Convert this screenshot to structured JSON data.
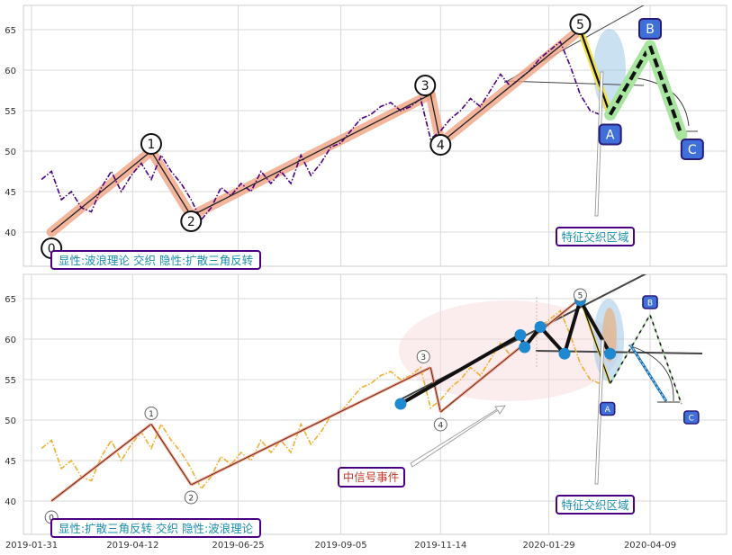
{
  "chart_data": [
    {
      "type": "line",
      "panel": "top",
      "ylim": [
        35.5,
        68
      ],
      "y_ticks": [
        "40",
        "45",
        "50",
        "55",
        "60",
        "65"
      ],
      "series": [
        {
          "role": "price",
          "color": "#4b0082",
          "style": "dash-dot",
          "x": [
            "2019-02-07",
            "2019-02-14",
            "2019-02-21",
            "2019-02-28",
            "2019-03-07",
            "2019-03-14",
            "2019-03-21",
            "2019-03-28",
            "2019-04-04",
            "2019-04-11",
            "2019-04-18",
            "2019-04-25",
            "2019-05-02",
            "2019-05-09",
            "2019-05-16",
            "2019-05-23",
            "2019-05-30",
            "2019-06-06",
            "2019-06-13",
            "2019-06-20",
            "2019-06-27",
            "2019-07-04",
            "2019-07-11",
            "2019-07-18",
            "2019-07-25",
            "2019-08-01",
            "2019-08-08",
            "2019-08-15",
            "2019-08-22",
            "2019-08-29",
            "2019-09-05",
            "2019-09-12",
            "2019-09-19",
            "2019-09-26",
            "2019-10-03",
            "2019-10-10",
            "2019-10-17",
            "2019-10-24",
            "2019-10-31",
            "2019-11-07",
            "2019-11-14",
            "2019-11-21",
            "2019-11-28",
            "2019-12-05",
            "2019-12-12",
            "2019-12-19",
            "2019-12-26",
            "2020-01-02",
            "2020-01-09",
            "2020-01-16",
            "2020-01-23",
            "2020-01-30",
            "2020-02-06",
            "2020-02-13",
            "2020-02-20",
            "2020-02-27",
            "2020-03-05"
          ],
          "values": [
            46.5,
            47.5,
            44.0,
            45.0,
            43.0,
            42.5,
            45.5,
            47.5,
            45.0,
            47.0,
            48.5,
            46.5,
            49.5,
            47.5,
            46.0,
            44.0,
            41.5,
            43.0,
            45.5,
            44.5,
            46.0,
            45.0,
            47.5,
            46.0,
            47.5,
            46.0,
            49.5,
            47.0,
            48.5,
            50.5,
            51.0,
            52.5,
            54.0,
            54.5,
            55.5,
            56.0,
            55.0,
            55.5,
            56.5,
            51.5,
            52.5,
            54.0,
            55.0,
            56.5,
            55.5,
            57.5,
            59.5,
            58.0,
            59.0,
            60.0,
            61.5,
            62.5,
            63.5,
            60.5,
            57.0,
            55.0,
            54.5
          ]
        }
      ],
      "wave": {
        "x": [
          "2019-02-14",
          "2019-04-25",
          "2019-05-23",
          "2019-11-07",
          "2019-11-14",
          "2020-02-20",
          "2020-03-12",
          "2020-04-09",
          "2020-05-01"
        ],
        "values": [
          40.0,
          50.0,
          42.0,
          57.0,
          51.0,
          65.0,
          54.5,
          63.0,
          52.0
        ],
        "labels": [
          "0",
          "1",
          "2",
          "3",
          "4",
          "5",
          "A",
          "B",
          "C"
        ]
      },
      "annotations": {
        "caption": "显性:波浪理论 交织 隐性:扩散三角反转",
        "zone_label": "特征交织区域"
      }
    },
    {
      "type": "line",
      "panel": "bottom",
      "ylim": [
        35.5,
        68
      ],
      "y_ticks": [
        "40",
        "45",
        "50",
        "55",
        "60",
        "65"
      ],
      "x_ticks": [
        "2019-01-31",
        "2019-04-12",
        "2019-06-25",
        "2019-09-05",
        "2019-11-14",
        "2020-01-29",
        "2020-04-09"
      ],
      "series": [
        {
          "role": "price",
          "color": "#f0b030",
          "style": "dash-dot",
          "x": [
            "2019-02-07",
            "2019-02-14",
            "2019-02-21",
            "2019-02-28",
            "2019-03-07",
            "2019-03-14",
            "2019-03-21",
            "2019-03-28",
            "2019-04-04",
            "2019-04-11",
            "2019-04-18",
            "2019-04-25",
            "2019-05-02",
            "2019-05-09",
            "2019-05-16",
            "2019-05-23",
            "2019-05-30",
            "2019-06-06",
            "2019-06-13",
            "2019-06-20",
            "2019-06-27",
            "2019-07-04",
            "2019-07-11",
            "2019-07-18",
            "2019-07-25",
            "2019-08-01",
            "2019-08-08",
            "2019-08-15",
            "2019-08-22",
            "2019-08-29",
            "2019-09-05",
            "2019-09-12",
            "2019-09-19",
            "2019-09-26",
            "2019-10-03",
            "2019-10-10",
            "2019-10-17",
            "2019-10-24",
            "2019-10-31",
            "2019-11-07",
            "2019-11-14",
            "2019-11-21",
            "2019-11-28",
            "2019-12-05",
            "2019-12-12",
            "2019-12-19",
            "2019-12-26",
            "2020-01-02",
            "2020-01-09",
            "2020-01-16",
            "2020-01-23",
            "2020-01-30",
            "2020-02-06",
            "2020-02-13",
            "2020-02-20",
            "2020-02-27",
            "2020-03-05"
          ],
          "values": [
            46.5,
            47.5,
            44.0,
            45.0,
            43.0,
            42.5,
            45.5,
            47.5,
            45.0,
            47.0,
            48.5,
            46.5,
            49.5,
            47.5,
            46.0,
            44.0,
            41.5,
            43.0,
            45.5,
            44.5,
            46.0,
            45.0,
            47.5,
            46.0,
            47.5,
            46.0,
            49.5,
            47.0,
            48.5,
            50.5,
            51.0,
            52.5,
            54.0,
            54.5,
            55.5,
            56.0,
            55.0,
            55.5,
            56.5,
            51.5,
            52.5,
            54.0,
            55.0,
            56.5,
            55.5,
            57.5,
            59.5,
            58.0,
            59.0,
            60.0,
            61.5,
            62.5,
            63.5,
            60.5,
            57.0,
            55.0,
            54.5
          ]
        }
      ],
      "wave": {
        "x": [
          "2019-02-14",
          "2019-04-25",
          "2019-05-23",
          "2019-11-07",
          "2019-11-14",
          "2020-02-20",
          "2020-03-12",
          "2020-04-09",
          "2020-05-01"
        ],
        "values": [
          40.0,
          49.5,
          42.0,
          56.5,
          51.0,
          65.0,
          54.5,
          63.0,
          52.0
        ],
        "labels": [
          "0",
          "1",
          "2",
          "3",
          "4",
          "5",
          "A",
          "B",
          "C"
        ]
      },
      "triangle_points": {
        "x": [
          "2019-10-17",
          "2020-01-09",
          "2020-01-12",
          "2020-01-23",
          "2020-02-09",
          "2020-02-20",
          "2020-03-12"
        ],
        "values": [
          52.0,
          60.5,
          59.0,
          61.5,
          58.2,
          64.8,
          58.2
        ]
      },
      "annotations": {
        "caption": "显性:扩散三角反转 交织 隐性:波浪理论",
        "zone_label": "特征交织区域",
        "signal_label": "中信号事件"
      }
    }
  ]
}
